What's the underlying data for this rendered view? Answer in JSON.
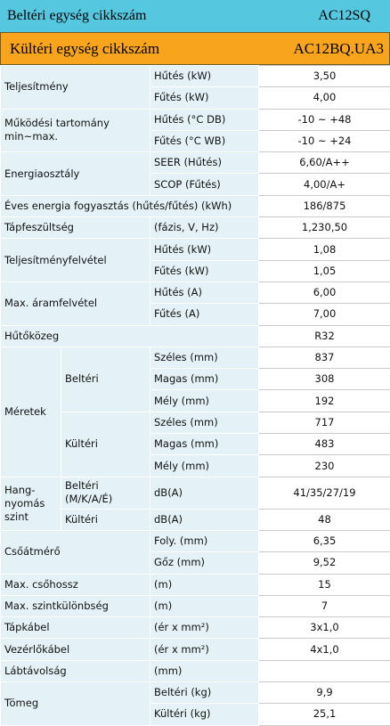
{
  "header": {
    "indoor_label": "Beltéri egység cikkszám",
    "indoor_model": "AC12SQ",
    "outdoor_label": "Kültéri egység cikkszám",
    "outdoor_model": "AC12BQ.UA3"
  },
  "table": {
    "rows": [
      [
        "Teljesítmény",
        "Hűtés (kW)",
        "3,50"
      ],
      [
        "Fűtés (kW)",
        "4,00"
      ],
      [
        "Működési tartomány\nmin~max.",
        "Hűtés (°C DB)",
        "-10 ~ +48"
      ],
      [
        "Fűtés (°C WB)",
        "-10 ~ +24"
      ],
      [
        "Energiaosztály",
        "SEER (Hűtés)",
        "6,60/A++"
      ],
      [
        "SCOP (Fűtés)",
        "4,00/A+"
      ],
      [
        "Éves energia fogyasztás (hűtés/fűtés)  (kWh)",
        "186/875"
      ],
      [
        "Tápfeszültség",
        "(fázis, V, Hz)",
        "1,230,50"
      ],
      [
        "Teljesítményfelvétel",
        "Hűtés (kW)",
        "1,08"
      ],
      [
        "Fűtés (kW)",
        "1,05"
      ],
      [
        "Max. áramfelvétel",
        "Hűtés (A)",
        "6,00"
      ],
      [
        "Fűtés (A)",
        "7,00"
      ],
      [
        "Hűtőközeg",
        "R32"
      ],
      [
        "Méretek",
        "Beltéri",
        "Széles (mm)",
        "837"
      ],
      [
        "Magas (mm)",
        "308"
      ],
      [
        "Mély (mm)",
        "192"
      ],
      [
        "Kültéri",
        "Széles (mm)",
        "717"
      ],
      [
        "Magas (mm)",
        "483"
      ],
      [
        "Mély (mm)",
        "230"
      ],
      [
        "Hang-\nnyomás\nszint",
        "Beltéri\n(M/K/A/É)",
        "dB(A)",
        "41/35/27/19"
      ],
      [
        "Kültéri",
        "dB(A)",
        "48"
      ],
      [
        "Csőátmérő",
        "Foly. (mm)",
        "6,35"
      ],
      [
        "Gőz (mm)",
        "9,52"
      ],
      [
        "Max. csőhossz",
        "(m)",
        "15"
      ],
      [
        "Max. szintkülönbség",
        "(m)",
        "7"
      ],
      [
        "Tápkábel",
        "(ér x mm²)",
        "3x1,0"
      ],
      [
        "Vezérlőkábel",
        "(ér x mm²)",
        "4x1,0"
      ],
      [
        "Lábtávolság",
        "(mm)"
      ],
      [
        "Tömeg",
        "Beltéri (kg)",
        "9,9"
      ],
      [
        "Kültéri (kg)",
        "25,1"
      ]
    ]
  }
}
